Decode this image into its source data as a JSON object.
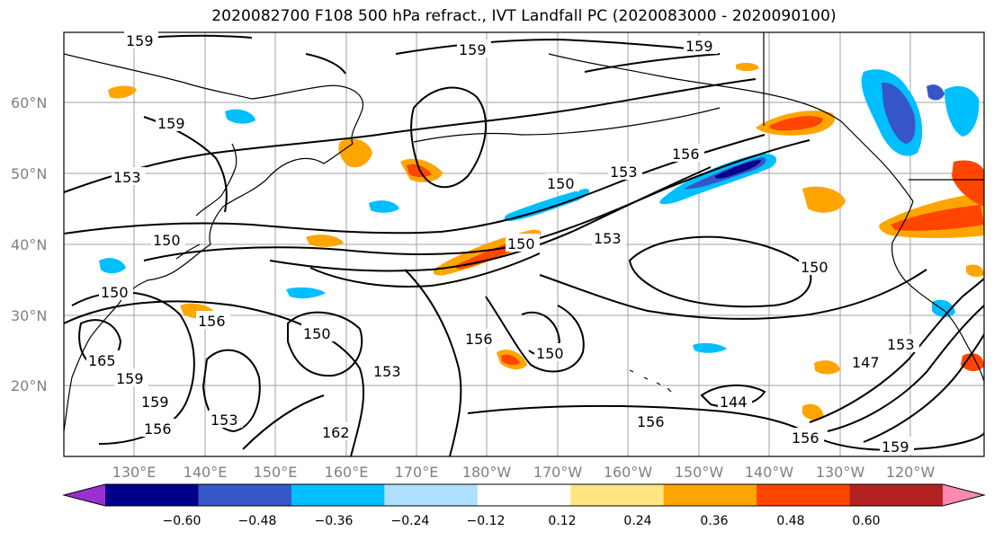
{
  "title": "2020082700 F108 500 hPa refract., IVT Landfall PC (2020083000 - 2020090100)",
  "map": {
    "lat_ticks": [
      "60°N",
      "50°N",
      "40°N",
      "30°N",
      "20°N"
    ],
    "lon_ticks": [
      "130°E",
      "140°E",
      "150°E",
      "160°E",
      "170°E",
      "180°W",
      "170°W",
      "160°W",
      "150°W",
      "140°W",
      "130°W",
      "120°W"
    ],
    "contour_labels": [
      "159",
      "159",
      "159",
      "159",
      "153",
      "150",
      "150",
      "150",
      "153",
      "156",
      "153",
      "150",
      "156",
      "150",
      "153",
      "156",
      "150",
      "147",
      "153",
      "144",
      "156",
      "156",
      "159",
      "162",
      "153",
      "156",
      "159",
      "165",
      "159",
      "150"
    ]
  },
  "colorbar": {
    "ticks": [
      "−0.60",
      "−0.48",
      "−0.36",
      "−0.24",
      "−0.12",
      "0.12",
      "0.24",
      "0.36",
      "0.48",
      "0.60"
    ],
    "colors": [
      "#9b30d0",
      "#00008b",
      "#3656c8",
      "#00bfff",
      "#b0e0ff",
      "#ffffff",
      "#ffe680",
      "#ffa500",
      "#ff4500",
      "#b22222",
      "#ff88b0"
    ]
  }
}
